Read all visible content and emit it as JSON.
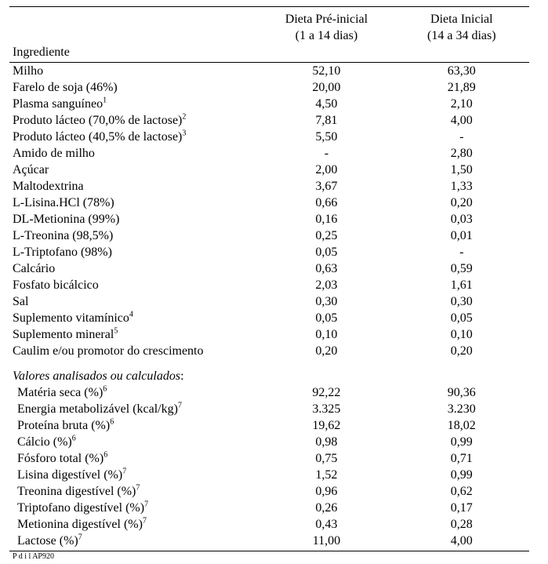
{
  "header": {
    "col1": "Ingrediente",
    "col2_line1": "Dieta Pré-inicial",
    "col2_line2": "(1 a 14 dias)",
    "col3_line1": "Dieta Inicial",
    "col3_line2": "(14 a 34 dias)"
  },
  "rows": [
    {
      "label": "Milho",
      "v1": "52,10",
      "v2": "63,30",
      "indent": 1
    },
    {
      "label": "Farelo de soja (46%)",
      "v1": "20,00",
      "v2": "21,89",
      "indent": 1
    },
    {
      "label": "Plasma sanguíneo",
      "sup": "1",
      "v1": "4,50",
      "v2": "2,10",
      "indent": 1
    },
    {
      "label": "Produto lácteo (70,0% de lactose)",
      "sup": "2",
      "v1": "7,81",
      "v2": "4,00",
      "indent": 1
    },
    {
      "label": "Produto lácteo (40,5% de lactose)",
      "sup": "3",
      "v1": "5,50",
      "v2": "-",
      "indent": 1
    },
    {
      "label": "Amido de milho",
      "v1": "-",
      "v2": "2,80",
      "indent": 1
    },
    {
      "label": "Açúcar",
      "v1": "2,00",
      "v2": "1,50",
      "indent": 1
    },
    {
      "label": "Maltodextrina",
      "v1": "3,67",
      "v2": "1,33",
      "indent": 1
    },
    {
      "label": "L-Lisina.HCl (78%)",
      "v1": "0,66",
      "v2": "0,20",
      "indent": 1
    },
    {
      "label": "DL-Metionina (99%)",
      "v1": "0,16",
      "v2": "0,03",
      "indent": 1
    },
    {
      "label": "L-Treonina (98,5%)",
      "v1": "0,25",
      "v2": "0,01",
      "indent": 1
    },
    {
      "label": "L-Triptofano (98%)",
      "v1": "0,05",
      "v2": "-",
      "indent": 1
    },
    {
      "label": "Calcário",
      "v1": "0,63",
      "v2": "0,59",
      "indent": 1
    },
    {
      "label": "Fosfato bicálcico",
      "v1": "2,03",
      "v2": "1,61",
      "indent": 1
    },
    {
      "label": "Sal",
      "v1": "0,30",
      "v2": "0,30",
      "indent": 1
    },
    {
      "label": "Suplemento vitamínico",
      "sup": "4",
      "v1": "0,05",
      "v2": "0,05",
      "indent": 1
    },
    {
      "label": "Suplemento mineral",
      "sup": "5",
      "v1": "0,10",
      "v2": "0,10",
      "indent": 1
    },
    {
      "label": "Caulim e/ou promotor do crescimento",
      "v1": "0,20",
      "v2": "0,20",
      "indent": 1
    }
  ],
  "section_title": "Valores analisados ou calculados",
  "rows2": [
    {
      "label": "Matéria seca (%)",
      "sup": "6",
      "v1": "92,22",
      "v2": "90,36",
      "indent": 2
    },
    {
      "label": "Energia metabolizável (kcal/kg)",
      "sup": "7",
      "v1": "3.325",
      "v2": "3.230",
      "indent": 2
    },
    {
      "label": "Proteína bruta (%)",
      "sup": "6",
      "v1": "19,62",
      "v2": "18,02",
      "indent": 2
    },
    {
      "label": "Cálcio (%)",
      "sup": "6",
      "v1": "0,98",
      "v2": "0,99",
      "indent": 2
    },
    {
      "label": "Fósforo total (%)",
      "sup": "6",
      "v1": "0,75",
      "v2": "0,71",
      "indent": 2
    },
    {
      "label": "Lisina digestível (%)",
      "sup": "7",
      "v1": "1,52",
      "v2": "0,99",
      "indent": 2
    },
    {
      "label": "Treonina digestível (%)",
      "sup": "7",
      "v1": "0,96",
      "v2": "0,62",
      "indent": 2
    },
    {
      "label": "Triptofano digestível (%)",
      "sup": "7",
      "v1": "0,26",
      "v2": "0,17",
      "indent": 2
    },
    {
      "label": "Metionina digestível (%)",
      "sup": "7",
      "v1": "0,43",
      "v2": "0,28",
      "indent": 2
    },
    {
      "label": "Lactose (%)",
      "sup": "7",
      "v1": "11,00",
      "v2": "4,00",
      "indent": 2,
      "last": true
    }
  ],
  "footnote_prefix": "P",
  "footnote_mid": "  d",
  "footnote_rest": "       i l AP920"
}
